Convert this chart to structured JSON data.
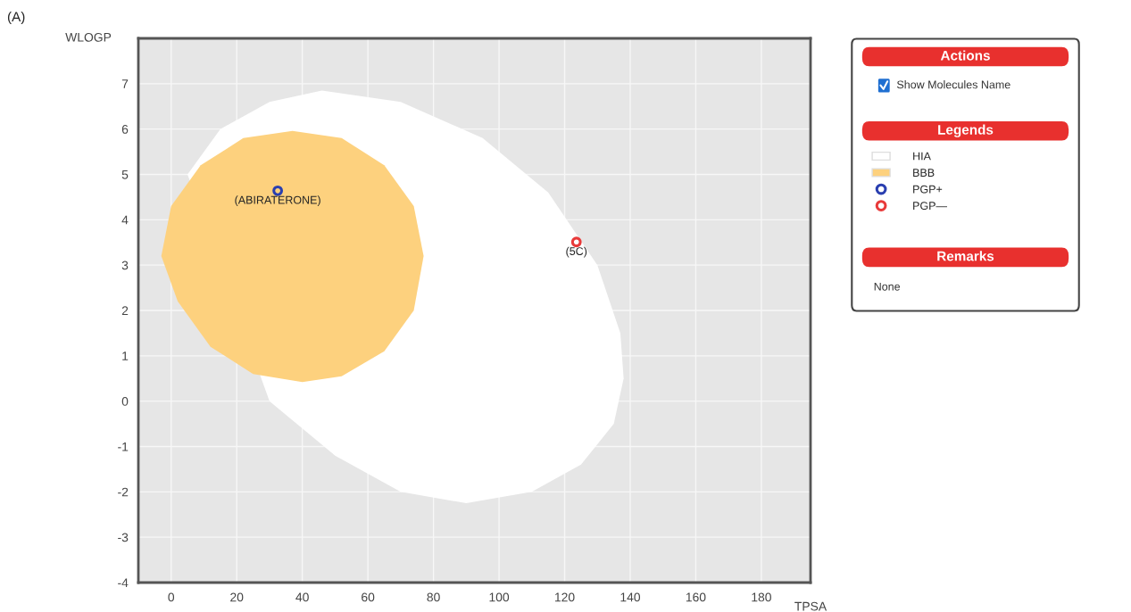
{
  "chart_data": {
    "type": "scatter",
    "xlabel": "TPSA",
    "ylabel": "WLOGP",
    "xlim": [
      -10,
      195
    ],
    "ylim": [
      -4,
      8
    ],
    "xticks": [
      0,
      20,
      40,
      60,
      80,
      100,
      120,
      140,
      160,
      180
    ],
    "yticks": [
      -4,
      -3,
      -2,
      -1,
      0,
      1,
      2,
      3,
      4,
      5,
      6,
      7
    ],
    "grid": true,
    "legend": "right",
    "series": [
      {
        "name": "HIA",
        "type": "area",
        "color": "#ffffff",
        "x": [
          46,
          70,
          95,
          115,
          130,
          137,
          138,
          135,
          125,
          110,
          90,
          70,
          50,
          30,
          5,
          15,
          30
        ],
        "values": [
          6.85,
          6.6,
          5.8,
          4.6,
          3.0,
          1.5,
          0.5,
          -0.5,
          -1.4,
          -2.0,
          -2.25,
          -2.0,
          -1.2,
          0.0,
          5.0,
          6.0,
          6.6
        ]
      },
      {
        "name": "BBB",
        "type": "area",
        "color": "#fdd17e",
        "x": [
          37,
          52,
          65,
          74,
          77,
          74,
          65,
          52,
          40,
          25,
          12,
          2,
          -3,
          0,
          9,
          22
        ],
        "values": [
          5.96,
          5.8,
          5.2,
          4.3,
          3.2,
          2.0,
          1.1,
          0.55,
          0.42,
          0.6,
          1.2,
          2.2,
          3.2,
          4.3,
          5.2,
          5.8
        ]
      },
      {
        "name": "PGP+",
        "color": "#2a3fb0",
        "marker": "circle",
        "x": [
          32.5
        ],
        "values": [
          4.64
        ]
      },
      {
        "name": "PGP—",
        "color": "#e83a3a",
        "marker": "circle",
        "x": [
          123.6
        ],
        "values": [
          3.51
        ]
      }
    ],
    "annotations": [
      "(A)",
      "Actions",
      "Show Molecules Name",
      "Legends",
      "Remarks",
      "None",
      {
        "text": "(ABIRATERONE)",
        "x": 32.5,
        "y": 4.64
      },
      {
        "text": "(5C)",
        "x": 123.6,
        "y": 3.51
      }
    ]
  }
}
